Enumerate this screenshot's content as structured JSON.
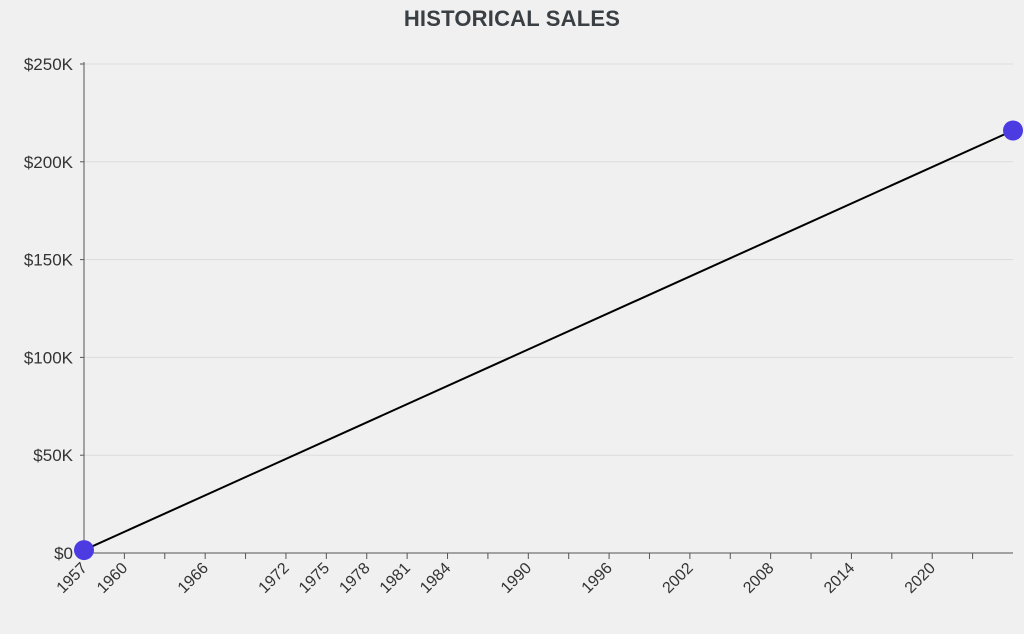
{
  "chart_data": {
    "type": "line",
    "title": "HISTORICAL SALES",
    "xlabel": "",
    "ylabel": "",
    "ylim": [
      0,
      250000
    ],
    "y_ticks": [
      0,
      50000,
      100000,
      150000,
      200000,
      250000
    ],
    "y_tick_labels": [
      "$0",
      "$50K",
      "$100K",
      "$150K",
      "$200K",
      "$250K"
    ],
    "xlim": [
      1957,
      2026
    ],
    "x_tick_labels": [
      "1957",
      "1960",
      "1966",
      "1972",
      "1975",
      "1978",
      "1981",
      "1984",
      "1990",
      "1996",
      "2002",
      "2008",
      "2014",
      "2020"
    ],
    "x_tick_marks": [
      1957,
      1960,
      1963,
      1966,
      1969,
      1972,
      1975,
      1978,
      1981,
      1984,
      1987,
      1990,
      1993,
      1996,
      1999,
      2002,
      2005,
      2008,
      2011,
      2014,
      2017,
      2020,
      2023
    ],
    "grid": true,
    "series": [
      {
        "x": [
          1957,
          2026
        ],
        "values": [
          1500,
          216000
        ],
        "line_color": "#000000",
        "marker_color": "#4b3be0"
      }
    ]
  }
}
